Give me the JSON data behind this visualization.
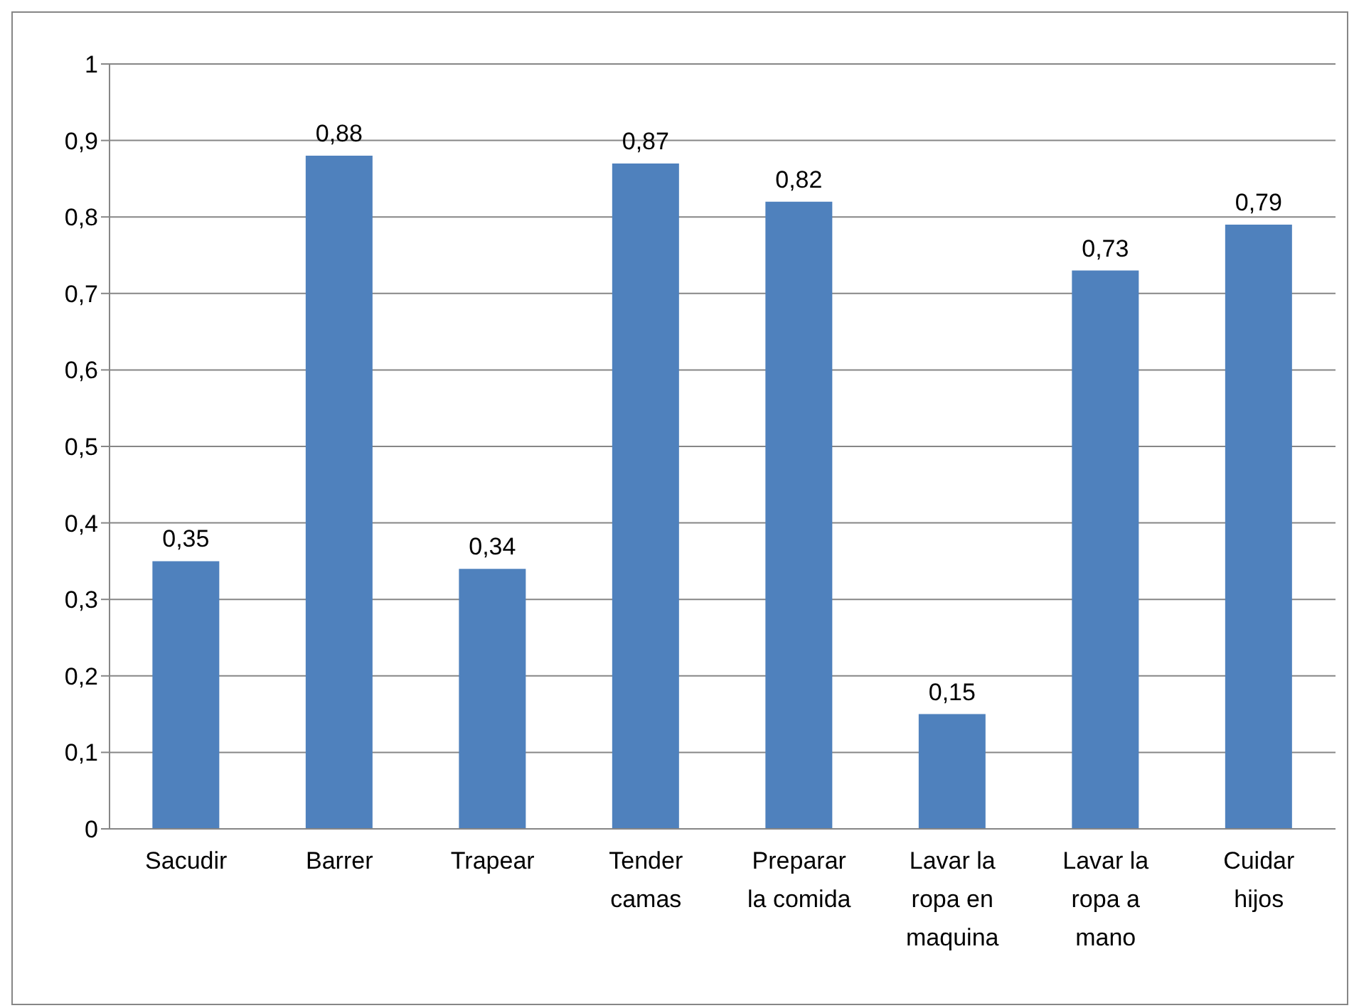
{
  "chart_data": {
    "type": "bar",
    "categories": [
      "Sacudir",
      "Barrer",
      "Trapear",
      "Tender camas",
      "Preparar la comida",
      "Lavar la ropa en maquina",
      "Lavar la ropa a mano",
      "Cuidar hijos"
    ],
    "values": [
      0.35,
      0.88,
      0.34,
      0.87,
      0.82,
      0.15,
      0.73,
      0.79
    ],
    "value_labels": [
      "0,35",
      "0,88",
      "0,34",
      "0,87",
      "0,82",
      "0,15",
      "0,73",
      "0,79"
    ],
    "color": "#4f81bd",
    "ylim": [
      0,
      1
    ],
    "yticks": [
      {
        "value": 0,
        "label": "0"
      },
      {
        "value": 0.1,
        "label": "0,1"
      },
      {
        "value": 0.2,
        "label": "0,2"
      },
      {
        "value": 0.3,
        "label": "0,3"
      },
      {
        "value": 0.4,
        "label": "0,4"
      },
      {
        "value": 0.5,
        "label": "0,5"
      },
      {
        "value": 0.6,
        "label": "0,6"
      },
      {
        "value": 0.7,
        "label": "0,7"
      },
      {
        "value": 0.8,
        "label": "0,8"
      },
      {
        "value": 0.9,
        "label": "0,9"
      },
      {
        "value": 1,
        "label": "1"
      }
    ],
    "grid": "y",
    "legend": false
  }
}
